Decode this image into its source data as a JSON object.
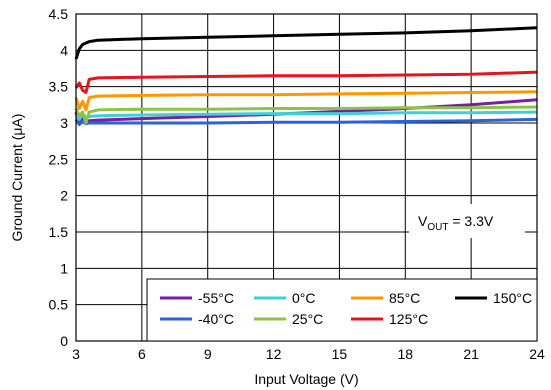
{
  "chart_data": {
    "type": "line",
    "title": "",
    "xlabel": "Input Voltage (V)",
    "ylabel": "Ground Current (μA)",
    "xlim": [
      3,
      24
    ],
    "ylim": [
      0,
      4.5
    ],
    "xticks": [
      3,
      6,
      9,
      12,
      15,
      18,
      21,
      24
    ],
    "yticks": [
      0,
      0.5,
      1,
      1.5,
      2,
      2.5,
      3,
      3.5,
      4,
      4.5
    ],
    "grid": true,
    "legend_position": "bottom-right",
    "annotation": {
      "main": "V",
      "sub": "OUT",
      "rest": " = 3.3V"
    },
    "series": [
      {
        "name": "-55°C",
        "color": "#7b1fa2",
        "x": [
          3.0,
          3.15,
          3.3,
          3.45,
          3.6,
          4,
          6,
          9,
          12,
          15,
          18,
          21,
          24
        ],
        "y": [
          3.15,
          3.0,
          3.08,
          3.02,
          3.03,
          3.04,
          3.06,
          3.09,
          3.12,
          3.16,
          3.2,
          3.25,
          3.32
        ]
      },
      {
        "name": "-40°C",
        "color": "#2a62d9",
        "x": [
          3.0,
          3.15,
          3.3,
          3.45,
          3.6,
          4,
          6,
          9,
          12,
          15,
          18,
          21,
          24
        ],
        "y": [
          3.05,
          2.98,
          3.02,
          2.99,
          3.0,
          3.0,
          3.0,
          3.0,
          3.01,
          3.01,
          3.02,
          3.03,
          3.05
        ]
      },
      {
        "name": "0°C",
        "color": "#3ecfdc",
        "x": [
          3.0,
          3.15,
          3.3,
          3.45,
          3.6,
          4,
          6,
          9,
          12,
          15,
          18,
          21,
          24
        ],
        "y": [
          3.1,
          3.05,
          3.12,
          3.08,
          3.09,
          3.1,
          3.11,
          3.12,
          3.13,
          3.13,
          3.14,
          3.14,
          3.15
        ]
      },
      {
        "name": "25°C",
        "color": "#8bc34a",
        "x": [
          3.0,
          3.15,
          3.3,
          3.45,
          3.6,
          4,
          6,
          9,
          12,
          15,
          18,
          21,
          24
        ],
        "y": [
          3.2,
          3.1,
          3.15,
          3.0,
          3.15,
          3.18,
          3.19,
          3.19,
          3.2,
          3.2,
          3.21,
          3.21,
          3.22
        ]
      },
      {
        "name": "85°C",
        "color": "#ff9800",
        "x": [
          3.0,
          3.15,
          3.3,
          3.45,
          3.6,
          4,
          6,
          9,
          12,
          15,
          18,
          21,
          24
        ],
        "y": [
          3.35,
          3.2,
          3.3,
          3.18,
          3.35,
          3.37,
          3.38,
          3.39,
          3.39,
          3.4,
          3.41,
          3.42,
          3.43
        ]
      },
      {
        "name": "125°C",
        "color": "#e8141c",
        "x": [
          3.0,
          3.15,
          3.3,
          3.45,
          3.6,
          4,
          6,
          9,
          12,
          15,
          18,
          21,
          24
        ],
        "y": [
          3.48,
          3.55,
          3.45,
          3.42,
          3.6,
          3.62,
          3.63,
          3.64,
          3.65,
          3.65,
          3.66,
          3.67,
          3.7
        ]
      },
      {
        "name": "150°C",
        "color": "#000000",
        "x": [
          3.0,
          3.15,
          3.3,
          3.6,
          4,
          6,
          9,
          12,
          15,
          18,
          21,
          24
        ],
        "y": [
          3.88,
          4.02,
          4.08,
          4.12,
          4.14,
          4.16,
          4.18,
          4.2,
          4.22,
          4.24,
          4.27,
          4.31
        ]
      }
    ]
  }
}
